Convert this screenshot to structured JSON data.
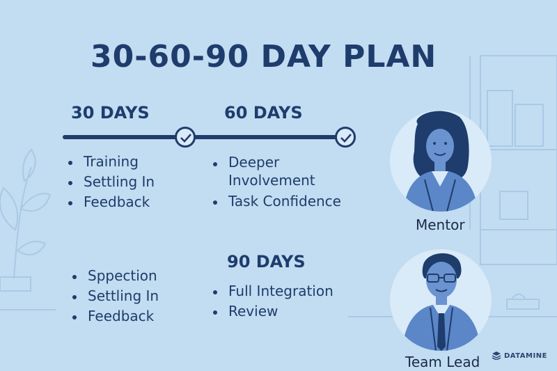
{
  "title": "30-60-90 DAY PLAN",
  "phases": {
    "day30": {
      "heading": "30 DAYS",
      "items": [
        "Training",
        "Settling In",
        "Feedback"
      ]
    },
    "day60": {
      "heading": "60 DAYS",
      "items": [
        "Deeper Involvement",
        "Task Confidence"
      ]
    },
    "day90": {
      "heading": "90 DAYS",
      "items": [
        "Full Integration",
        "Review"
      ]
    },
    "extra": {
      "items": [
        "Sppection",
        "Settling In",
        "Feedback"
      ]
    }
  },
  "people": {
    "mentor": {
      "label": "Mentor",
      "icon": "woman-portrait-icon"
    },
    "team_lead": {
      "label": "Team Lead",
      "icon": "man-portrait-icon"
    }
  },
  "brand": {
    "name": "DATAMINE",
    "icon": "datamine-logo-icon"
  },
  "colors": {
    "background": "#c2dcf1",
    "primary": "#1e3c6c",
    "accent": "#5b86c8"
  }
}
